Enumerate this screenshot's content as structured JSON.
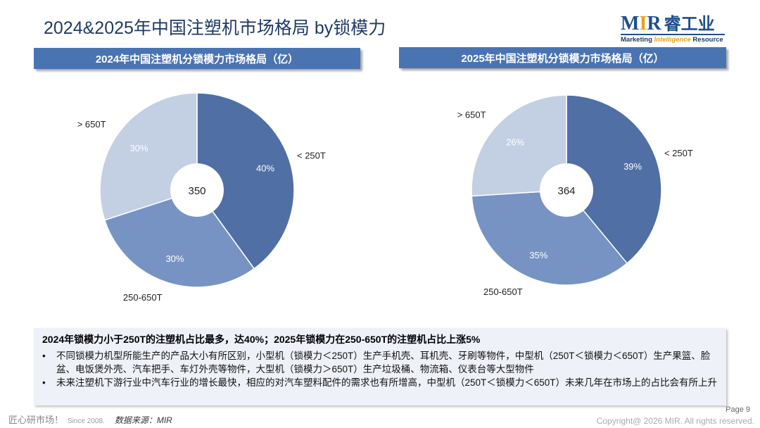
{
  "page": {
    "title": "2024&2025年中国注塑机市场格局 by锁模力",
    "page_label": "Page 9",
    "copyright": "Copyright@ 2026 MIR. All rights reserved."
  },
  "logo": {
    "name_prefix": "M",
    "name_highlight": "I",
    "name_suffix": "R",
    "name_cn": "睿工业",
    "tagline_a": "Marketing ",
    "tagline_b": "Intelligence",
    "tagline_c": " Resource"
  },
  "footer": {
    "brand": "匠心研市场！",
    "since": "Since 2008.",
    "source": "数据来源：MIR"
  },
  "summary": {
    "headline": "2024年锁模力小于250T的注塑机占比最多，达40%；2025年锁模力在250-650T的注塑机占比上涨5%",
    "bullets": [
      "不同锁模力机型所能生产的产品大小有所区别，小型机（锁模力＜250T）生产手机壳、耳机壳、牙刷等物件，中型机（250T＜锁模力＜650T）生产果篮、脸盆、电饭煲外壳、汽车把手、车灯外壳等物件，大型机（锁模力＞650T）生产垃圾桶、物流箱、仪表台等大型物件",
      "未来注塑机下游行业中汽车行业的增长最快，相应的对汽车塑料配件的需求也有所增高，中型机（250T＜锁模力＜650T）未来几年在市场上的占比会有所上升"
    ]
  },
  "colors": {
    "slice_small": "#4f6fa5",
    "slice_mid": "#7693c4",
    "slice_large": "#c3cfe3",
    "header_bar": "#4a73b2",
    "title": "#1f3a66"
  },
  "chart_data": [
    {
      "type": "pie",
      "title": "2024年中国注塑机分锁模力市场格局（亿）",
      "center_label": "350",
      "categories": [
        "< 250T",
        "250-650T",
        "> 650T"
      ],
      "values": [
        40,
        30,
        30
      ],
      "value_labels": [
        "40%",
        "30%",
        "30%"
      ]
    },
    {
      "type": "pie",
      "title": "2025年中国注塑机分锁模力市场格局（亿）",
      "center_label": "364",
      "categories": [
        "< 250T",
        "250-650T",
        "> 650T"
      ],
      "values": [
        39,
        35,
        26
      ],
      "value_labels": [
        "39%",
        "35%",
        "26%"
      ]
    }
  ]
}
